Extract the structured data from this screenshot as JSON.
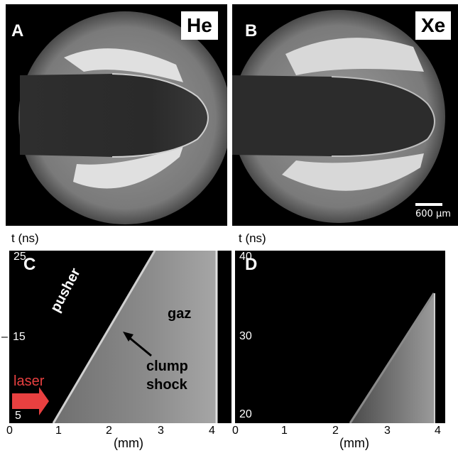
{
  "panel_a": {
    "letter": "A",
    "gas": "He"
  },
  "panel_b": {
    "letter": "B",
    "gas": "Xe",
    "scale_bar": "600 µm"
  },
  "panel_c": {
    "letter": "C",
    "time_axis_label": "t (ns)",
    "time_ticks": [
      "25",
      "15",
      "5"
    ],
    "x_ticks": [
      "0",
      "1",
      "2",
      "3",
      "4"
    ],
    "x_unit": "(mm)",
    "annotations": {
      "pusher": "pusher",
      "gaz": "gaz",
      "clump": "clump",
      "shock": "shock",
      "laser": "laser"
    }
  },
  "panel_d": {
    "letter": "D",
    "time_axis_label": "t (ns)",
    "time_ticks": [
      "40",
      "30",
      "20"
    ],
    "x_ticks": [
      "0",
      "1",
      "2",
      "3",
      "4"
    ],
    "x_unit": "(mm)"
  },
  "colors": {
    "laser_arrow": "#e84040",
    "background": "#000000"
  }
}
